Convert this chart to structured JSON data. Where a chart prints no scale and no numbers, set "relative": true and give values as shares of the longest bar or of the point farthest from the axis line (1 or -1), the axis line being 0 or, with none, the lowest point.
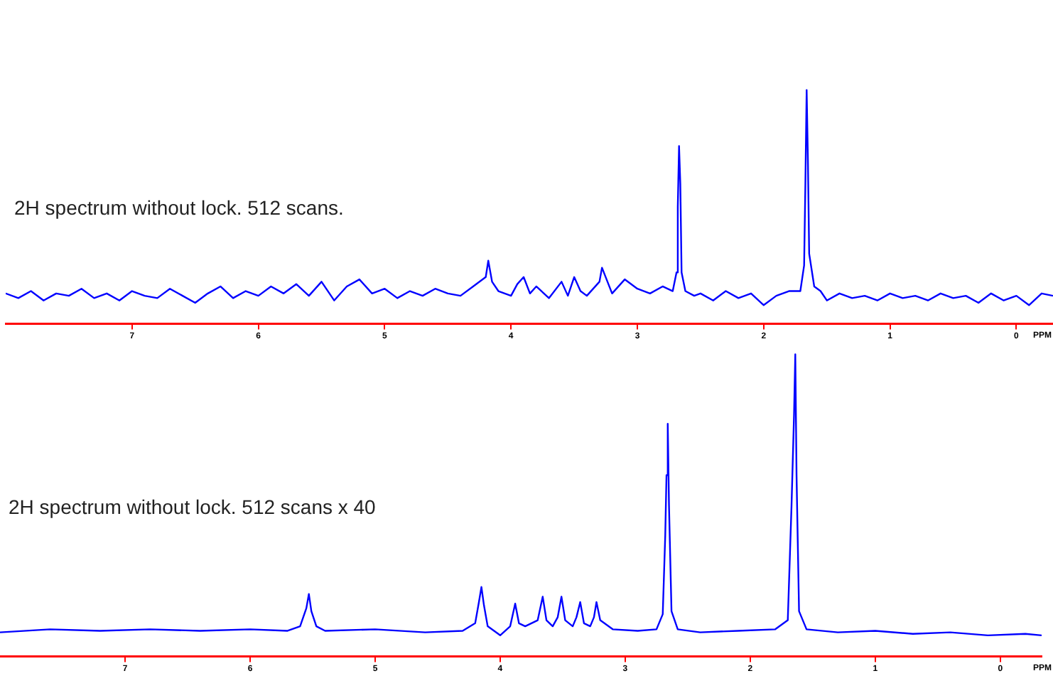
{
  "chart_data": [
    {
      "type": "line",
      "title": "2H spectrum without lock. 512 scans.",
      "xlabel": "PPM",
      "relative": true,
      "xlim": [
        8.0,
        -0.29
      ],
      "xticks": [
        0,
        1,
        2,
        3,
        4,
        5,
        6,
        7
      ],
      "marker": "none",
      "line_style": "solid",
      "legend": false,
      "series": [
        {
          "color": "#0000ff",
          "x": [
            8.0,
            7.9,
            7.8,
            7.7,
            7.6,
            7.5,
            7.4,
            7.3,
            7.2,
            7.1,
            7.0,
            6.9,
            6.8,
            6.7,
            6.6,
            6.5,
            6.4,
            6.3,
            6.2,
            6.1,
            6.0,
            5.9,
            5.8,
            5.7,
            5.6,
            5.5,
            5.4,
            5.3,
            5.2,
            5.1,
            5.0,
            4.9,
            4.8,
            4.7,
            4.6,
            4.5,
            4.4,
            4.3,
            4.2,
            4.18,
            4.15,
            4.1,
            4.0,
            3.95,
            3.9,
            3.85,
            3.8,
            3.7,
            3.6,
            3.55,
            3.5,
            3.45,
            3.4,
            3.3,
            3.28,
            3.2,
            3.1,
            3.0,
            2.9,
            2.8,
            2.72,
            2.69,
            2.68,
            2.67,
            2.66,
            2.65,
            2.62,
            2.55,
            2.5,
            2.4,
            2.3,
            2.2,
            2.1,
            2.0,
            1.9,
            1.8,
            1.71,
            1.68,
            1.67,
            1.66,
            1.65,
            1.64,
            1.6,
            1.55,
            1.5,
            1.4,
            1.3,
            1.2,
            1.1,
            1.0,
            0.9,
            0.8,
            0.7,
            0.6,
            0.5,
            0.4,
            0.3,
            0.2,
            0.1,
            0.0,
            -0.1,
            -0.2,
            -0.29
          ],
          "values": [
            0.13,
            0.11,
            0.14,
            0.1,
            0.13,
            0.12,
            0.15,
            0.11,
            0.13,
            0.1,
            0.14,
            0.12,
            0.11,
            0.15,
            0.12,
            0.09,
            0.13,
            0.16,
            0.11,
            0.14,
            0.12,
            0.16,
            0.13,
            0.17,
            0.12,
            0.18,
            0.1,
            0.16,
            0.19,
            0.13,
            0.15,
            0.11,
            0.14,
            0.12,
            0.15,
            0.13,
            0.12,
            0.16,
            0.2,
            0.27,
            0.18,
            0.14,
            0.12,
            0.17,
            0.2,
            0.13,
            0.16,
            0.11,
            0.18,
            0.12,
            0.2,
            0.14,
            0.12,
            0.18,
            0.24,
            0.13,
            0.19,
            0.15,
            0.13,
            0.16,
            0.14,
            0.22,
            0.5,
            0.76,
            0.6,
            0.22,
            0.14,
            0.12,
            0.13,
            0.1,
            0.14,
            0.11,
            0.13,
            0.08,
            0.12,
            0.14,
            0.14,
            0.25,
            0.6,
            1.0,
            0.7,
            0.3,
            0.16,
            0.14,
            0.1,
            0.13,
            0.11,
            0.12,
            0.1,
            0.13,
            0.11,
            0.12,
            0.1,
            0.13,
            0.11,
            0.12,
            0.09,
            0.13,
            0.1,
            0.12,
            0.08,
            0.13,
            0.12
          ]
        }
      ]
    },
    {
      "type": "line",
      "title": "2H spectrum without lock. 512 scans x 40",
      "xlabel": "PPM",
      "relative": true,
      "xlim": [
        8.0,
        -0.33
      ],
      "xticks": [
        0,
        1,
        2,
        3,
        4,
        5,
        6,
        7
      ],
      "marker": "none",
      "line_style": "solid",
      "legend": false,
      "series": [
        {
          "color": "#0000ff",
          "x": [
            8.0,
            7.6,
            7.2,
            6.8,
            6.4,
            6.0,
            5.7,
            5.6,
            5.55,
            5.53,
            5.51,
            5.47,
            5.4,
            5.0,
            4.6,
            4.3,
            4.2,
            4.17,
            4.15,
            4.13,
            4.1,
            4.0,
            3.92,
            3.88,
            3.85,
            3.8,
            3.7,
            3.66,
            3.63,
            3.58,
            3.54,
            3.51,
            3.48,
            3.42,
            3.39,
            3.36,
            3.33,
            3.28,
            3.25,
            3.23,
            3.2,
            3.1,
            2.9,
            2.75,
            2.7,
            2.68,
            2.67,
            2.66,
            2.65,
            2.63,
            2.58,
            2.4,
            2.1,
            1.8,
            1.7,
            1.67,
            1.65,
            1.64,
            1.63,
            1.61,
            1.55,
            1.3,
            1.0,
            0.7,
            0.4,
            0.1,
            -0.2,
            -0.33
          ],
          "values": [
            0.08,
            0.09,
            0.085,
            0.09,
            0.085,
            0.09,
            0.085,
            0.1,
            0.16,
            0.207,
            0.15,
            0.1,
            0.085,
            0.09,
            0.08,
            0.085,
            0.11,
            0.18,
            0.23,
            0.17,
            0.1,
            0.07,
            0.1,
            0.175,
            0.11,
            0.1,
            0.12,
            0.198,
            0.12,
            0.1,
            0.13,
            0.198,
            0.12,
            0.1,
            0.13,
            0.18,
            0.11,
            0.1,
            0.13,
            0.18,
            0.12,
            0.09,
            0.085,
            0.09,
            0.14,
            0.4,
            0.6,
            0.77,
            0.5,
            0.15,
            0.09,
            0.08,
            0.085,
            0.09,
            0.12,
            0.5,
            0.8,
            1.0,
            0.6,
            0.15,
            0.09,
            0.08,
            0.085,
            0.075,
            0.08,
            0.07,
            0.075,
            0.07
          ]
        }
      ]
    }
  ]
}
